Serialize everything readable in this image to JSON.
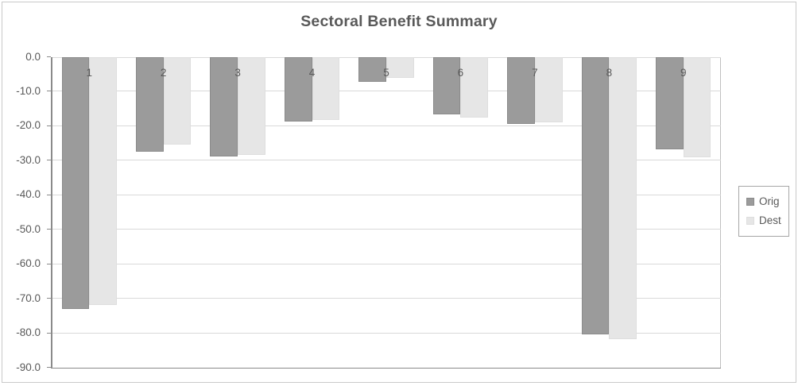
{
  "chart_data": {
    "type": "bar",
    "title": "Sectoral Benefit Summary",
    "categories": [
      "1",
      "2",
      "3",
      "4",
      "5",
      "6",
      "7",
      "8",
      "9"
    ],
    "series": [
      {
        "name": "Orig",
        "color": "#9b9b9b",
        "border_color": "#8b8b8b",
        "values": [
          -73.0,
          -27.6,
          -28.8,
          -18.7,
          -7.2,
          -16.7,
          -19.4,
          -80.4,
          -26.9
        ]
      },
      {
        "name": "Dest",
        "color": "#e6e6e6",
        "border_color": "#dedede",
        "values": [
          -71.9,
          -25.5,
          -28.5,
          -18.4,
          -6.0,
          -17.7,
          -19.0,
          -81.8,
          -29.2
        ]
      }
    ],
    "ylim": [
      -90,
      0
    ],
    "yticks": [
      0,
      -10,
      -20,
      -30,
      -40,
      -50,
      -60,
      -70,
      -80,
      -90
    ],
    "ytick_labels": [
      "0.0",
      "-10.0",
      "-20.0",
      "-30.0",
      "-40.0",
      "-50.0",
      "-60.0",
      "-70.0",
      "-80.0",
      "-90.0"
    ],
    "grid": true,
    "legend_position": "right",
    "colors": {
      "title_text": "#595959",
      "axis_text": "#595959",
      "gridline": "#d9d9d9",
      "axis_line": "#8a8a8a",
      "plot_border": "#bfbfbf",
      "legend_border": "#a6a6a6",
      "chart_border": "#c9c9c9",
      "background": "#ffffff"
    }
  }
}
